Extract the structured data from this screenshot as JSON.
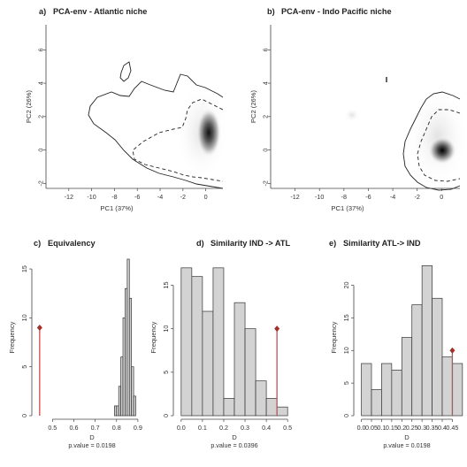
{
  "chart_data": [
    {
      "type": "contour",
      "panel_label": "a)",
      "title": "PCA-env - Atlantic niche",
      "xlabel": "PC1 (37%)",
      "ylabel": "PC2 (26%)",
      "xlim": [
        -14,
        1.5
      ],
      "ylim": [
        -2.3,
        7.5
      ],
      "xticks": [
        -12,
        -10,
        -8,
        -6,
        -4,
        -2,
        0
      ],
      "yticks": [
        -2,
        0,
        2,
        4,
        6
      ],
      "density_peak": [
        0.3,
        1.2
      ]
    },
    {
      "type": "contour",
      "panel_label": "b)",
      "title": "PCA-env - Indo Pacific niche",
      "xlabel": "PC1 (37%)",
      "ylabel": "PC2 (26%)",
      "xlim": [
        -14,
        1.5
      ],
      "ylim": [
        -2.3,
        7.5
      ],
      "xticks": [
        -12,
        -10,
        -8,
        -6,
        -4,
        -2,
        0
      ],
      "yticks": [
        -2,
        0,
        2,
        4,
        6
      ],
      "density_peak": [
        0.3,
        0.0
      ]
    },
    {
      "type": "histogram",
      "panel_label": "c)",
      "title": "Equivalency",
      "xlabel": "D",
      "ylabel": "Frequency",
      "p_value_text": "p.value = 0.0198",
      "xlim": [
        0.42,
        0.95
      ],
      "ylim": [
        0,
        16
      ],
      "xticks": [
        0.5,
        0.6,
        0.7,
        0.8,
        0.9
      ],
      "yticks": [
        0,
        5,
        10,
        15
      ],
      "bin_width": 0.01,
      "bin_start": 0.79,
      "counts": [
        1,
        1,
        3,
        6,
        10,
        13,
        16,
        12,
        5,
        2
      ],
      "observed_D": 0.44,
      "observed_y": 9
    },
    {
      "type": "histogram",
      "panel_label": "d)",
      "title": "Similarity IND -> ATL",
      "xlabel": "D",
      "ylabel": "Frequency",
      "p_value_text": "p.value = 0.0396",
      "xlim": [
        -0.02,
        0.52
      ],
      "ylim": [
        0,
        18
      ],
      "xticks": [
        0.0,
        0.1,
        0.2,
        0.3,
        0.4,
        0.5
      ],
      "yticks": [
        0,
        5,
        10,
        15
      ],
      "bin_width": 0.05,
      "bin_start": 0.0,
      "counts": [
        17,
        16,
        12,
        17,
        2,
        13,
        10,
        4,
        2,
        1
      ],
      "observed_D": 0.45,
      "observed_y": 10
    },
    {
      "type": "histogram",
      "panel_label": "e)",
      "title": "Similarity ATL-> IND",
      "xlabel": "D",
      "ylabel": "Frequency",
      "p_value_text": "p.value = 0.0198",
      "xlim": [
        -0.02,
        0.47
      ],
      "ylim": [
        0,
        24
      ],
      "xticks": [
        0.0,
        0.05,
        0.1,
        0.15,
        0.2,
        0.25,
        0.3,
        0.35,
        0.4,
        0.45
      ],
      "yticks": [
        0,
        5,
        10,
        15,
        20
      ],
      "bin_width": 0.05,
      "bin_start": 0.0,
      "counts": [
        8,
        4,
        8,
        7,
        12,
        17,
        23,
        18,
        9,
        8
      ],
      "observed_D": 0.45,
      "observed_y": 10
    }
  ],
  "colors": {
    "bar_fill": "#d3d3d3",
    "bar_edge": "#333333",
    "observed_line": "#c0504d",
    "observed_marker": "#a3312b",
    "axis": "#444444"
  }
}
